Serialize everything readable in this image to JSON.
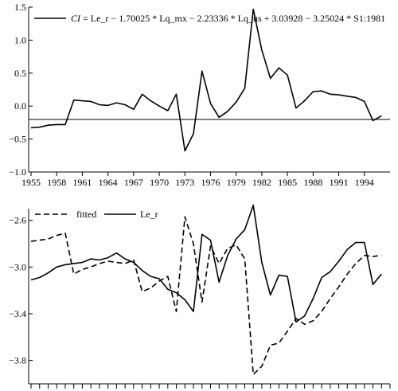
{
  "chart_data": [
    {
      "type": "line",
      "legend": {
        "italic_prefix": "CI",
        "text": " = Le_r − 1.70025 * Lq_mx − 2.23336 * Lq_us + 3.03928 − 3.25024 * S1:1981",
        "placement": "top"
      },
      "ylim": [
        -1.0,
        1.5
      ],
      "yticks": [
        -1.0,
        -0.5,
        0.0,
        0.5,
        1.0,
        1.5
      ],
      "ytick_labels": [
        "−1.0",
        "−0.5",
        "0.0",
        "0.5",
        "1.0",
        "1.5"
      ],
      "xlim": [
        1955,
        1997
      ],
      "xticks": [
        1955,
        1958,
        1961,
        1964,
        1967,
        1970,
        1973,
        1976,
        1979,
        1982,
        1985,
        1988,
        1991,
        1994
      ],
      "xtick_labels": [
        "1955",
        "1958",
        "1961",
        "1964",
        "1967",
        "1970",
        "1973",
        "1976",
        "1979",
        "1982",
        "1985",
        "1988",
        "1991",
        "1994"
      ],
      "zero_line": true,
      "series": [
        {
          "name": "CI",
          "style": "solid",
          "x": [
            1955,
            1956,
            1957,
            1958,
            1959,
            1960,
            1961,
            1962,
            1963,
            1964,
            1965,
            1966,
            1967,
            1968,
            1969,
            1970,
            1971,
            1972,
            1973,
            1974,
            1975,
            1976,
            1977,
            1978,
            1979,
            1980,
            1981,
            1982,
            1983,
            1984,
            1985,
            1986,
            1987,
            1988,
            1989,
            1990,
            1991,
            1992,
            1993,
            1994,
            1995,
            1996
          ],
          "y": [
            -0.33,
            -0.32,
            -0.29,
            -0.28,
            -0.28,
            0.09,
            0.08,
            0.07,
            0.02,
            0.01,
            0.05,
            0.02,
            -0.05,
            0.18,
            0.08,
            0.0,
            -0.07,
            0.18,
            -0.68,
            -0.42,
            0.53,
            0.04,
            -0.17,
            -0.08,
            0.06,
            0.27,
            1.47,
            0.85,
            0.42,
            0.58,
            0.47,
            -0.03,
            0.08,
            0.22,
            0.23,
            0.18,
            0.17,
            0.15,
            0.13,
            0.07,
            -0.22,
            -0.15
          ]
        }
      ]
    },
    {
      "type": "line",
      "legend": {
        "entries": [
          {
            "label": "fitted",
            "style": "dashed"
          },
          {
            "label": "Le_r",
            "style": "solid"
          }
        ],
        "placement": "top-left"
      },
      "ylim": [
        -4.0,
        -2.5
      ],
      "yticks": [
        -3.8,
        -3.4,
        -3.0,
        -2.6
      ],
      "ytick_labels": [
        "−3.8",
        "−3.4",
        "−3.0",
        "−2.6"
      ],
      "xlim": [
        1955,
        1997
      ],
      "xticks": [
        1955,
        1956,
        1957,
        1958,
        1959,
        1960,
        1961,
        1962,
        1963,
        1964,
        1965,
        1966,
        1967,
        1968,
        1969,
        1970,
        1971,
        1972,
        1973,
        1974,
        1975,
        1976,
        1977,
        1978,
        1979,
        1980,
        1981,
        1982,
        1983,
        1984,
        1985,
        1986,
        1987,
        1988,
        1989,
        1990,
        1991,
        1992,
        1993,
        1994,
        1995,
        1996,
        1997
      ],
      "series": [
        {
          "name": "fitted",
          "style": "dashed",
          "x": [
            1955,
            1956,
            1957,
            1958,
            1959,
            1960,
            1961,
            1962,
            1963,
            1964,
            1965,
            1966,
            1967,
            1968,
            1969,
            1970,
            1971,
            1972,
            1973,
            1974,
            1975,
            1976,
            1977,
            1978,
            1979,
            1980,
            1981,
            1982,
            1983,
            1984,
            1985,
            1986,
            1987,
            1988,
            1989,
            1990,
            1991,
            1992,
            1993,
            1994,
            1995,
            1996
          ],
          "y": [
            -2.78,
            -2.77,
            -2.76,
            -2.73,
            -2.71,
            -3.06,
            -3.02,
            -3.0,
            -2.97,
            -2.95,
            -2.96,
            -2.97,
            -2.94,
            -3.21,
            -3.18,
            -3.12,
            -3.08,
            -3.38,
            -2.57,
            -2.8,
            -3.3,
            -2.82,
            -2.97,
            -2.84,
            -2.81,
            -2.93,
            -3.92,
            -3.85,
            -3.67,
            -3.65,
            -3.55,
            -3.44,
            -3.49,
            -3.46,
            -3.38,
            -3.27,
            -3.17,
            -3.06,
            -2.97,
            -2.9,
            -2.91,
            -2.9
          ]
        },
        {
          "name": "Le_r",
          "style": "solid",
          "x": [
            1955,
            1956,
            1957,
            1958,
            1959,
            1960,
            1961,
            1962,
            1963,
            1964,
            1965,
            1966,
            1967,
            1968,
            1969,
            1970,
            1971,
            1972,
            1973,
            1974,
            1975,
            1976,
            1977,
            1978,
            1979,
            1980,
            1981,
            1982,
            1983,
            1984,
            1985,
            1986,
            1987,
            1988,
            1989,
            1990,
            1991,
            1992,
            1993,
            1994,
            1995,
            1996
          ],
          "y": [
            -3.11,
            -3.09,
            -3.05,
            -3.0,
            -2.98,
            -2.97,
            -2.96,
            -2.93,
            -2.94,
            -2.92,
            -2.88,
            -2.93,
            -2.96,
            -3.03,
            -3.08,
            -3.1,
            -3.19,
            -3.22,
            -3.28,
            -3.38,
            -2.72,
            -2.77,
            -3.13,
            -2.9,
            -2.76,
            -2.68,
            -2.47,
            -2.96,
            -3.24,
            -3.07,
            -3.08,
            -3.47,
            -3.42,
            -3.27,
            -3.09,
            -3.04,
            -2.95,
            -2.85,
            -2.79,
            -2.79,
            -3.15,
            -3.06
          ]
        }
      ]
    }
  ]
}
